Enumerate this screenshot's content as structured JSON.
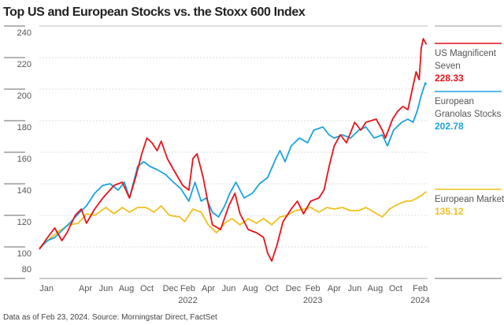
{
  "chart_data": {
    "type": "line",
    "title": "Top US and European Stocks vs. the Stoxx 600 Index",
    "note": "Data as of Feb 23, 2024. Source: Morningstar Direct, FactSet",
    "x_unit": "months since Jan 2021",
    "xlim": [
      0,
      38.3
    ],
    "ylim": [
      80,
      245
    ],
    "y_ticks": [
      240,
      220,
      200,
      180,
      160,
      140,
      120,
      100,
      80
    ],
    "x_ticks": [
      {
        "m": 0.7,
        "label": "Jan",
        "year": ""
      },
      {
        "m": 4.5,
        "label": "Apr",
        "year": ""
      },
      {
        "m": 6.5,
        "label": "Jun",
        "year": ""
      },
      {
        "m": 8.5,
        "label": "Aug",
        "year": ""
      },
      {
        "m": 10.5,
        "label": "Oct",
        "year": ""
      },
      {
        "m": 12.8,
        "label": "Dec",
        "year": ""
      },
      {
        "m": 14.5,
        "label": "Feb",
        "year": "2022"
      },
      {
        "m": 16.5,
        "label": "Apr",
        "year": ""
      },
      {
        "m": 18.5,
        "label": "Jun",
        "year": ""
      },
      {
        "m": 20.6,
        "label": "Aug",
        "year": ""
      },
      {
        "m": 22.7,
        "label": "Oct",
        "year": ""
      },
      {
        "m": 24.8,
        "label": "Dec",
        "year": ""
      },
      {
        "m": 26.7,
        "label": "Feb",
        "year": "2023"
      },
      {
        "m": 28.8,
        "label": "Apr",
        "year": ""
      },
      {
        "m": 30.8,
        "label": "Jun",
        "year": ""
      },
      {
        "m": 32.8,
        "label": "Aug",
        "year": ""
      },
      {
        "m": 34.8,
        "label": "Oct",
        "year": ""
      },
      {
        "m": 37.2,
        "label": "Feb",
        "year": "2024"
      }
    ],
    "series": [
      {
        "name_line1": "US Magnificent",
        "name_line2": "Seven",
        "last": "228.33",
        "color": "#e5141b",
        "x": [
          0,
          0.8,
          1.5,
          2.2,
          2.7,
          3.5,
          4.1,
          4.6,
          5.4,
          6.2,
          7.3,
          8.1,
          8.8,
          9.4,
          10,
          10.5,
          11,
          11.5,
          11.9,
          12.5,
          13.1,
          14,
          14.6,
          15,
          15.4,
          16,
          16.5,
          16.9,
          17.7,
          18.5,
          19.1,
          19.6,
          20.4,
          21.2,
          21.9,
          22.3,
          22.7,
          23.2,
          23.8,
          24.6,
          25.2,
          25.8,
          26.5,
          27.3,
          27.8,
          28.3,
          28.8,
          29.4,
          30,
          30.8,
          31.4,
          31.9,
          32.9,
          33.5,
          33.8,
          34.5,
          35,
          35.5,
          36,
          36.3,
          36.8,
          37.1,
          37.3,
          37.5,
          37.8
        ],
        "y": [
          98.5,
          106,
          112,
          104,
          109,
          120,
          124,
          115,
          124,
          131,
          139,
          141,
          131,
          144,
          159,
          169,
          166,
          161,
          167,
          156,
          149,
          139,
          136,
          156,
          159,
          144,
          127,
          114,
          111,
          126,
          134,
          121,
          111,
          109,
          106,
          96,
          91,
          101,
          116,
          124,
          129,
          121,
          129,
          131,
          136,
          151,
          164,
          171,
          166,
          179,
          174,
          179,
          181,
          174,
          169,
          181,
          186,
          189,
          187,
          196,
          211,
          206,
          226,
          232,
          228.33
        ]
      },
      {
        "name_line1": "European",
        "name_line2": "Granolas Stocks",
        "last": "202.78",
        "color": "#1ba3da",
        "x": [
          0,
          0.8,
          1.5,
          2.3,
          3.1,
          3.8,
          4.6,
          5.4,
          6.2,
          6.9,
          7.7,
          8.3,
          8.8,
          9.6,
          10.2,
          10.8,
          11.5,
          12.3,
          13.1,
          13.8,
          14.6,
          15.2,
          15.8,
          16.3,
          16.9,
          17.5,
          18.1,
          18.6,
          19.2,
          20,
          20.8,
          21.5,
          22.3,
          23.1,
          23.5,
          24,
          24.6,
          25.4,
          26.2,
          26.8,
          27.7,
          28.3,
          28.8,
          29.6,
          30.4,
          31.2,
          31.9,
          32.7,
          33.5,
          34,
          34.6,
          35.4,
          36,
          36.5,
          36.9,
          37.3,
          37.7,
          37.8
        ],
        "y": [
          99,
          104,
          106,
          111,
          116,
          121,
          126,
          134,
          139,
          140,
          136,
          141,
          131,
          151,
          154,
          151,
          149,
          146,
          141,
          137,
          129,
          141,
          129,
          131,
          122,
          119,
          126,
          134,
          141,
          131,
          134,
          140,
          144,
          156,
          161,
          154,
          164,
          169,
          166,
          174,
          176,
          171,
          169,
          171,
          169,
          174,
          176,
          169,
          171,
          164,
          174,
          179,
          181,
          179,
          186,
          196,
          204,
          202.78
        ]
      },
      {
        "name_line1": "European Market",
        "name_line2": "",
        "last": "135.12",
        "color": "#f0c020",
        "x": [
          0,
          0.8,
          1.9,
          2.9,
          3.8,
          4.6,
          5.4,
          6.5,
          7.3,
          8.1,
          8.8,
          9.6,
          10.4,
          11.2,
          11.9,
          12.7,
          13.7,
          14.2,
          15,
          15.8,
          16.5,
          17.3,
          18.1,
          18.8,
          19.6,
          20.4,
          21.2,
          21.9,
          22.7,
          23.5,
          24.2,
          25,
          25.8,
          26.5,
          27.3,
          28.1,
          28.8,
          29.6,
          30.4,
          31.2,
          31.9,
          32.7,
          33.5,
          34.2,
          35,
          35.8,
          36.3,
          36.9,
          37.4,
          37.8
        ],
        "y": [
          99.5,
          104,
          110,
          114,
          115,
          121,
          120,
          125,
          121,
          125,
          122,
          125,
          125,
          122,
          126,
          120,
          119,
          116,
          124,
          122,
          114,
          109,
          115,
          118,
          114,
          118,
          115,
          118,
          114,
          119,
          120,
          123,
          124,
          125,
          122,
          125,
          124,
          125,
          123,
          123,
          125,
          122,
          119,
          124,
          127,
          129,
          129,
          131,
          133,
          135.12
        ]
      }
    ]
  }
}
